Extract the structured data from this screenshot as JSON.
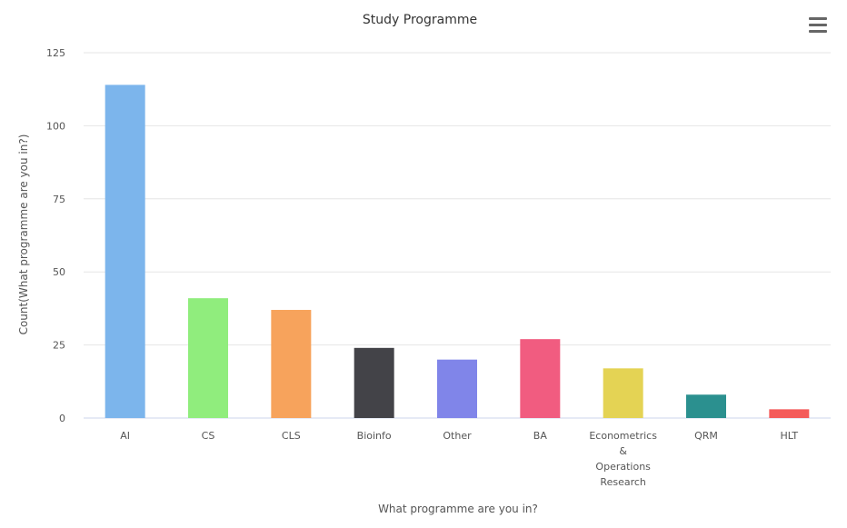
{
  "menu": {
    "icon": "hamburger-menu-icon"
  },
  "chart_data": {
    "type": "bar",
    "title": "Study Programme",
    "xlabel": "What programme are you in?",
    "ylabel": "Count(What programme are you in?)",
    "ylim": [
      0,
      125
    ],
    "yticks": [
      0,
      25,
      50,
      75,
      100,
      125
    ],
    "grid": true,
    "categories": [
      "AI",
      "CS",
      "CLS",
      "Bioinfo",
      "Other",
      "BA",
      "Econometrics & Operations Research",
      "QRM",
      "HLT"
    ],
    "category_lines": [
      [
        "AI"
      ],
      [
        "CS"
      ],
      [
        "CLS"
      ],
      [
        "Bioinfo"
      ],
      [
        "Other"
      ],
      [
        "BA"
      ],
      [
        "Econometrics",
        "&",
        "Operations",
        "Research"
      ],
      [
        "QRM"
      ],
      [
        "HLT"
      ]
    ],
    "values": [
      114,
      41,
      37,
      24,
      20,
      27,
      17,
      8,
      3
    ],
    "colors": [
      "#7cb5ec",
      "#90ed7d",
      "#f7a35c",
      "#434348",
      "#8085e9",
      "#f15c80",
      "#e4d354",
      "#2b908f",
      "#f45b5b"
    ]
  }
}
